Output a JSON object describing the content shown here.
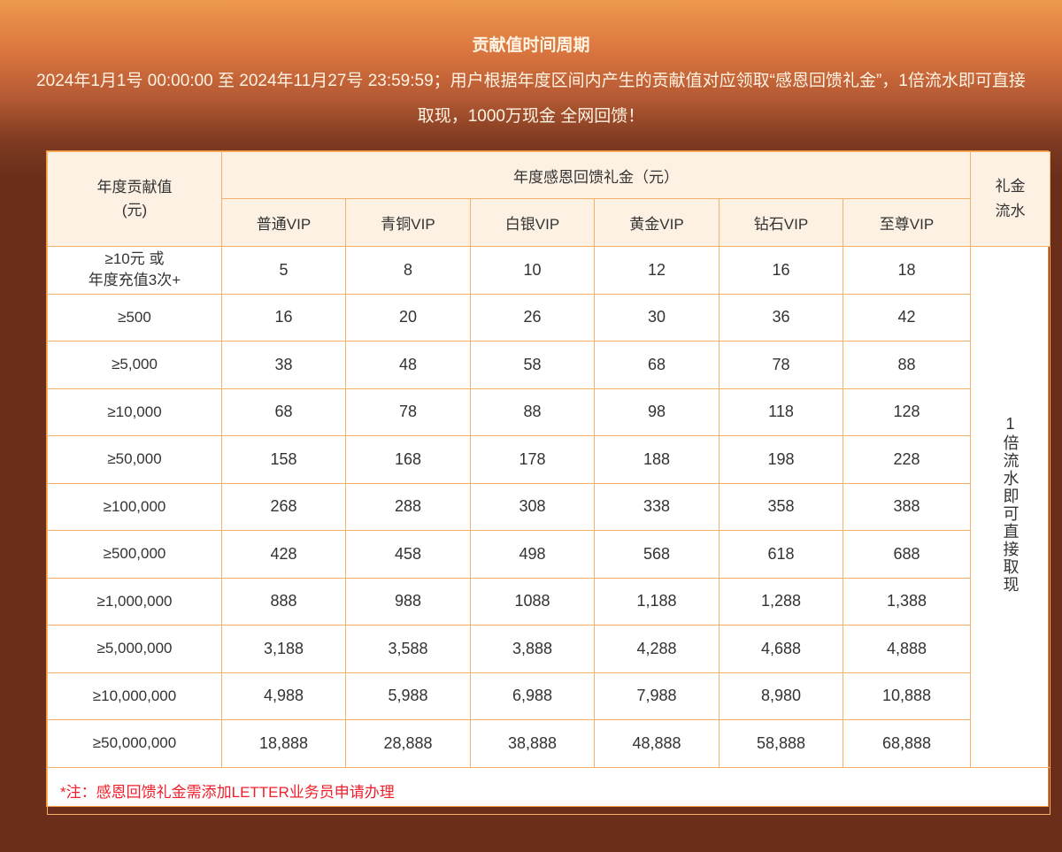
{
  "header": {
    "title": "贡献值时间周期",
    "description": "2024年1月1号 00:00:00 至 2024年11月27号 23:59:59；用户根据年度区间内产生的贡献值对应领取“感恩回馈礼金”，1倍流水即可直接取现，1000万现金 全网回馈！"
  },
  "table": {
    "col_contribution": "年度贡献值\n(元)",
    "col_group": "年度感恩回馈礼金（元）",
    "col_turnover": "礼金流水",
    "tiers": [
      "普通VIP",
      "青铜VIP",
      "白银VIP",
      "黄金VIP",
      "钻石VIP",
      "至尊VIP"
    ],
    "turnover_text": "1倍流水即可直接取现",
    "rows": [
      {
        "label": "≥10元 或\n年度充值3次+",
        "values": [
          "5",
          "8",
          "10",
          "12",
          "16",
          "18"
        ]
      },
      {
        "label": "≥500",
        "values": [
          "16",
          "20",
          "26",
          "30",
          "36",
          "42"
        ]
      },
      {
        "label": "≥5,000",
        "values": [
          "38",
          "48",
          "58",
          "68",
          "78",
          "88"
        ]
      },
      {
        "label": "≥10,000",
        "values": [
          "68",
          "78",
          "88",
          "98",
          "118",
          "128"
        ]
      },
      {
        "label": "≥50,000",
        "values": [
          "158",
          "168",
          "178",
          "188",
          "198",
          "228"
        ]
      },
      {
        "label": "≥100,000",
        "values": [
          "268",
          "288",
          "308",
          "338",
          "358",
          "388"
        ]
      },
      {
        "label": "≥500,000",
        "values": [
          "428",
          "458",
          "498",
          "568",
          "618",
          "688"
        ]
      },
      {
        "label": "≥1,000,000",
        "values": [
          "888",
          "988",
          "1088",
          "1,188",
          "1,288",
          "1,388"
        ]
      },
      {
        "label": "≥5,000,000",
        "values": [
          "3,188",
          "3,588",
          "3,888",
          "4,288",
          "4,688",
          "4,888"
        ]
      },
      {
        "label": "≥10,000,000",
        "values": [
          "4,988",
          "5,988",
          "6,988",
          "7,988",
          "8,980",
          "10,888"
        ]
      },
      {
        "label": "≥50,000,000",
        "values": [
          "18,888",
          "28,888",
          "38,888",
          "48,888",
          "58,888",
          "68,888"
        ]
      }
    ],
    "note": "*注：感恩回馈礼金需添加LETTER业务员申请办理"
  }
}
